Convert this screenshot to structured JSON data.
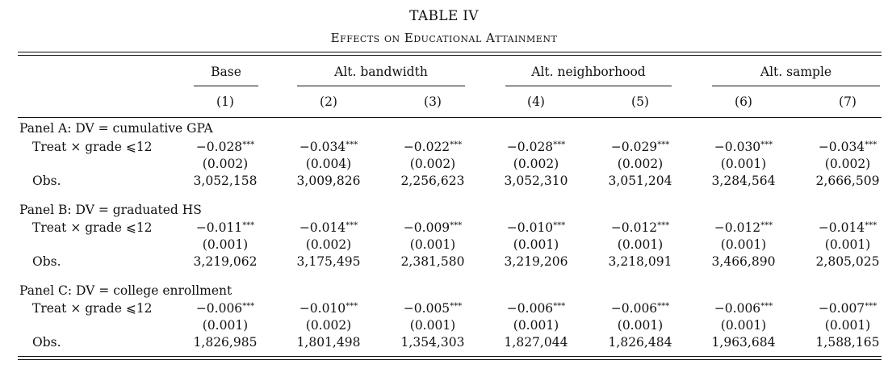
{
  "title": "TABLE IV",
  "subtitle": "Effects on Educational Attainment",
  "groups": [
    {
      "label": "Base"
    },
    {
      "label": "Alt. bandwidth"
    },
    {
      "label": "Alt. neighborhood"
    },
    {
      "label": "Alt. sample"
    }
  ],
  "columns": [
    "(1)",
    "(2)",
    "(3)",
    "(4)",
    "(5)",
    "(6)",
    "(7)"
  ],
  "panels": [
    {
      "label": "Panel A: DV = cumulative GPA",
      "row_label": "Treat × grade ⩽12",
      "obs_label": "Obs.",
      "coef": [
        "−0.028",
        "−0.034",
        "−0.022",
        "−0.028",
        "−0.029",
        "−0.030",
        "−0.034"
      ],
      "stars": [
        "***",
        "***",
        "***",
        "***",
        "***",
        "***",
        "***"
      ],
      "se": [
        "(0.002)",
        "(0.004)",
        "(0.002)",
        "(0.002)",
        "(0.002)",
        "(0.001)",
        "(0.002)"
      ],
      "obs": [
        "3,052,158",
        "3,009,826",
        "2,256,623",
        "3,052,310",
        "3,051,204",
        "3,284,564",
        "2,666,509"
      ]
    },
    {
      "label": "Panel B: DV = graduated HS",
      "row_label": "Treat × grade ⩽12",
      "obs_label": "Obs.",
      "coef": [
        "−0.011",
        "−0.014",
        "−0.009",
        "−0.010",
        "−0.012",
        "−0.012",
        "−0.014"
      ],
      "stars": [
        "***",
        "***",
        "***",
        "***",
        "***",
        "***",
        "***"
      ],
      "se": [
        "(0.001)",
        "(0.002)",
        "(0.001)",
        "(0.001)",
        "(0.001)",
        "(0.001)",
        "(0.001)"
      ],
      "obs": [
        "3,219,062",
        "3,175,495",
        "2,381,580",
        "3,219,206",
        "3,218,091",
        "3,466,890",
        "2,805,025"
      ]
    },
    {
      "label": "Panel C: DV = college enrollment",
      "row_label": "Treat × grade ⩽12",
      "obs_label": "Obs.",
      "coef": [
        "−0.006",
        "−0.010",
        "−0.005",
        "−0.006",
        "−0.006",
        "−0.006",
        "−0.007"
      ],
      "stars": [
        "***",
        "***",
        "***",
        "***",
        "***",
        "***",
        "***"
      ],
      "se": [
        "(0.001)",
        "(0.002)",
        "(0.001)",
        "(0.001)",
        "(0.001)",
        "(0.001)",
        "(0.001)"
      ],
      "obs": [
        "1,826,985",
        "1,801,498",
        "1,354,303",
        "1,827,044",
        "1,826,484",
        "1,963,684",
        "1,588,165"
      ]
    }
  ]
}
